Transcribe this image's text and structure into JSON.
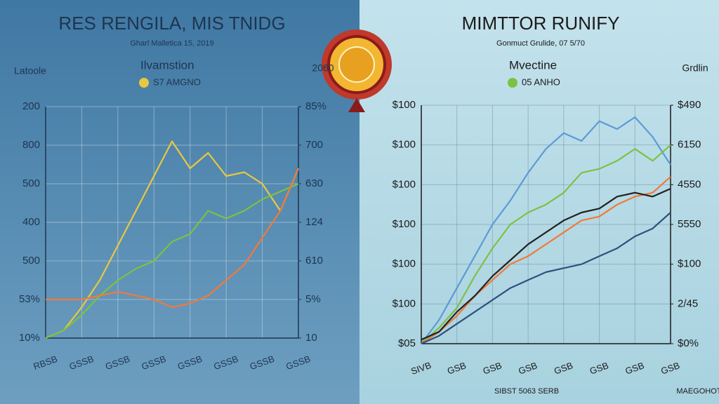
{
  "chart_data": [
    {
      "type": "line",
      "title": "RES RENGILA, MIS TNIDG",
      "subtitle": "Gharl Malletica 15, 2019",
      "y_label": "Latoole",
      "y2_label": "2060",
      "legend_title": "Ilvamstion",
      "x": [
        0,
        1,
        2,
        3,
        4,
        5,
        6,
        7,
        8,
        9,
        10,
        11,
        12,
        13,
        14
      ],
      "xlim": [
        0,
        14
      ],
      "xticks": [
        {
          "value": 0,
          "label": "RBSB"
        },
        {
          "value": 2,
          "label": "GSSB"
        },
        {
          "value": 4,
          "label": "GSSB"
        },
        {
          "value": 6,
          "label": "GSSB"
        },
        {
          "value": 8,
          "label": "GSSB"
        },
        {
          "value": 10,
          "label": "GSSB"
        },
        {
          "value": 12,
          "label": "GSSB"
        },
        {
          "value": 14,
          "label": "GSSB"
        }
      ],
      "ylim": [
        0,
        6
      ],
      "yticks": [
        {
          "value": 0,
          "label": "10%"
        },
        {
          "value": 1,
          "label": "53%"
        },
        {
          "value": 2,
          "label": "500"
        },
        {
          "value": 3,
          "label": "400"
        },
        {
          "value": 4,
          "label": "500"
        },
        {
          "value": 5,
          "label": "800"
        },
        {
          "value": 6,
          "label": "200"
        }
      ],
      "y2lim": [
        0,
        6
      ],
      "y2ticks": [
        {
          "value": 0,
          "label": "10"
        },
        {
          "value": 1,
          "label": "5%"
        },
        {
          "value": 2,
          "label": "610"
        },
        {
          "value": 3,
          "label": "124"
        },
        {
          "value": 4,
          "label": "630"
        },
        {
          "value": 5,
          "label": "700"
        },
        {
          "value": 6,
          "label": "85%"
        }
      ],
      "grid": true,
      "series": [
        {
          "name": "S7 AMGNO",
          "color": "#e8c840",
          "values": [
            0,
            0.2,
            0.8,
            1.5,
            2.4,
            3.3,
            4.2,
            5.1,
            4.4,
            4.8,
            4.2,
            4.3,
            4.0,
            3.3,
            4.4
          ]
        },
        {
          "color": "#7cc242",
          "values": [
            0,
            0.2,
            0.6,
            1.1,
            1.5,
            1.8,
            2.0,
            2.5,
            2.7,
            3.3,
            3.1,
            3.3,
            3.6,
            3.8,
            4.0
          ]
        },
        {
          "color": "#f07a3a",
          "values": [
            1.0,
            1.0,
            1.0,
            1.1,
            1.2,
            1.1,
            1.0,
            0.8,
            0.9,
            1.1,
            1.5,
            1.9,
            2.6,
            3.3,
            4.4
          ]
        }
      ]
    },
    {
      "type": "line",
      "title": "MIMTTOR RUNIFY",
      "subtitle": "Gonmuct Grulide, 07 5/70",
      "y2_label": "Grdlin",
      "legend_title": "Mvectine",
      "notes": [
        "SIBST 5063 SERB",
        "MAEGOHOTLI"
      ],
      "x": [
        0,
        1,
        2,
        3,
        4,
        5,
        6,
        7,
        8,
        9,
        10,
        11,
        12,
        13,
        14
      ],
      "xlim": [
        0,
        14
      ],
      "xticks": [
        {
          "value": 0,
          "label": "SIVB"
        },
        {
          "value": 2,
          "label": "GSB"
        },
        {
          "value": 4,
          "label": "GSB"
        },
        {
          "value": 6,
          "label": "GSB"
        },
        {
          "value": 8,
          "label": "GSB"
        },
        {
          "value": 10,
          "label": "GSB"
        },
        {
          "value": 12,
          "label": "GSB"
        },
        {
          "value": 14,
          "label": "GSB"
        }
      ],
      "ylim": [
        0,
        6
      ],
      "yticks": [
        {
          "value": 0,
          "label": "$05"
        },
        {
          "value": 1,
          "label": "$100"
        },
        {
          "value": 2,
          "label": "$100"
        },
        {
          "value": 3,
          "label": "$100"
        },
        {
          "value": 4,
          "label": "$100"
        },
        {
          "value": 5,
          "label": "$100"
        },
        {
          "value": 6,
          "label": "$100"
        }
      ],
      "y2lim": [
        0,
        6
      ],
      "y2ticks": [
        {
          "value": 0,
          "label": "$0%"
        },
        {
          "value": 1,
          "label": "2/45"
        },
        {
          "value": 2,
          "label": "$100"
        },
        {
          "value": 3,
          "label": "5550"
        },
        {
          "value": 4,
          "label": "4550"
        },
        {
          "value": 5,
          "label": "6150"
        },
        {
          "value": 6,
          "label": "$490"
        }
      ],
      "grid": true,
      "series": [
        {
          "color": "#5b9bd5",
          "values": [
            0,
            0.6,
            1.4,
            2.2,
            3.0,
            3.6,
            4.3,
            4.9,
            5.3,
            5.1,
            5.6,
            5.4,
            5.7,
            5.2,
            4.5
          ]
        },
        {
          "name": "05 ANHO",
          "color": "#7cc242",
          "values": [
            0,
            0.4,
            0.9,
            1.7,
            2.4,
            3.0,
            3.3,
            3.5,
            3.8,
            4.3,
            4.4,
            4.6,
            4.9,
            4.6,
            5.0
          ]
        },
        {
          "color": "#f07a3a",
          "values": [
            0,
            0.3,
            0.7,
            1.2,
            1.6,
            2.0,
            2.2,
            2.5,
            2.8,
            3.1,
            3.2,
            3.5,
            3.7,
            3.8,
            4.2
          ]
        },
        {
          "color": "#222222",
          "values": [
            0.1,
            0.3,
            0.8,
            1.2,
            1.7,
            2.1,
            2.5,
            2.8,
            3.1,
            3.3,
            3.4,
            3.7,
            3.8,
            3.7,
            3.9
          ]
        },
        {
          "color": "#2f4f7f",
          "values": [
            0,
            0.2,
            0.5,
            0.8,
            1.1,
            1.4,
            1.6,
            1.8,
            1.9,
            2.0,
            2.2,
            2.4,
            2.7,
            2.9,
            3.3
          ]
        }
      ]
    }
  ]
}
